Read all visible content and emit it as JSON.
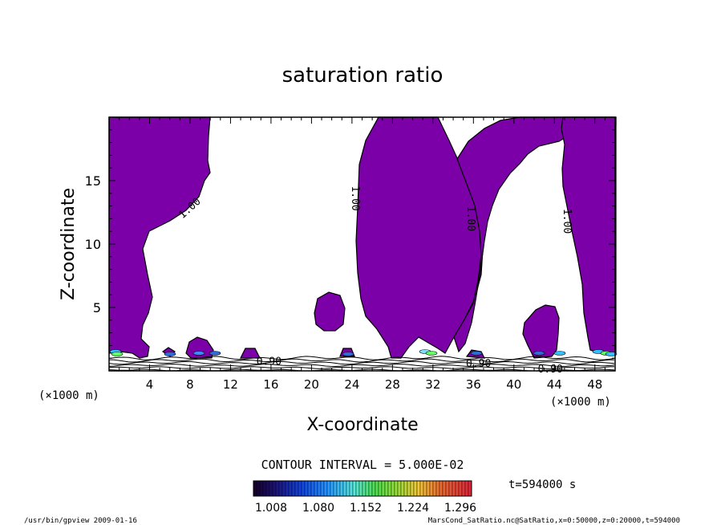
{
  "chart_data": {
    "type": "heatmap",
    "title": "saturation ratio",
    "xlabel": "X-coordinate",
    "ylabel": "Z-coordinate",
    "x_unit": "(×1000 m)",
    "x_ticks": [
      4,
      8,
      12,
      16,
      20,
      24,
      28,
      32,
      36,
      40,
      44,
      48
    ],
    "y_ticks": [
      5,
      10,
      15
    ],
    "xlim": [
      0,
      50
    ],
    "ylim": [
      0,
      20
    ],
    "contour_interval": "CONTOUR INTERVAL = 5.000E-02",
    "time_label": "t=594000 s",
    "colorbar_ticks": [
      "1.008",
      "1.080",
      "1.152",
      "1.224",
      "1.296"
    ],
    "contour_labels": [
      {
        "x": 8,
        "z": 12.8,
        "text": "1.00"
      },
      {
        "x": 24.3,
        "z": 13.6,
        "text": "1.00"
      },
      {
        "x": 35.7,
        "z": 12.0,
        "text": "1.00"
      },
      {
        "x": 45.2,
        "z": 11.8,
        "text": "1.00"
      },
      {
        "x": 15.8,
        "z": 0.7,
        "text": "0.90"
      },
      {
        "x": 36.5,
        "z": 0.55,
        "text": "0.90"
      },
      {
        "x": 43.6,
        "z": 0.1,
        "text": "0.90"
      }
    ],
    "fill_color": "#7c00a8",
    "fill_meaning": "saturation ratio below 1.00 (subsaturated)"
  },
  "footer": {
    "left": "/usr/bin/gpview  2009-01-16",
    "right": "MarsCond_SatRatio.nc@SatRatio,x=0:50000,z=0:20000,t=594000"
  }
}
